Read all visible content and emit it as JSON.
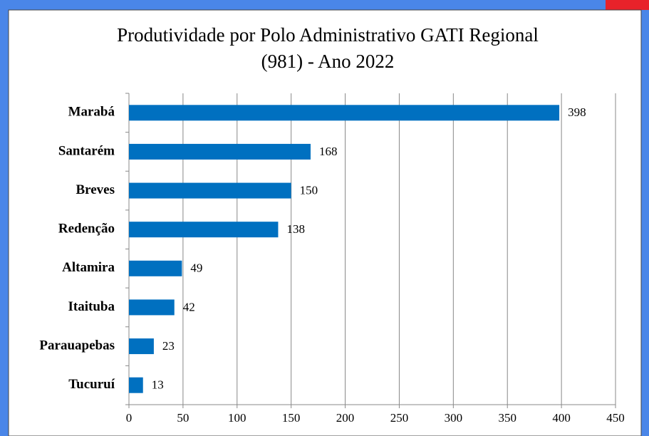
{
  "chart_data": {
    "type": "bar",
    "orientation": "horizontal",
    "title": [
      "Produtividade por Polo Administrativo GATI Regional",
      "(981) - Ano 2022"
    ],
    "categories": [
      "Marabá",
      "Santarém",
      "Breves",
      "Redenção",
      "Altamira",
      "Itaituba",
      "Parauapebas",
      "Tucuruí"
    ],
    "values": [
      398,
      168,
      150,
      138,
      49,
      42,
      23,
      13
    ],
    "color": "#0070c0",
    "xlim": [
      0,
      450
    ],
    "xticks": [
      0,
      50,
      100,
      150,
      200,
      250,
      300,
      350,
      400,
      450
    ],
    "grid": true
  }
}
